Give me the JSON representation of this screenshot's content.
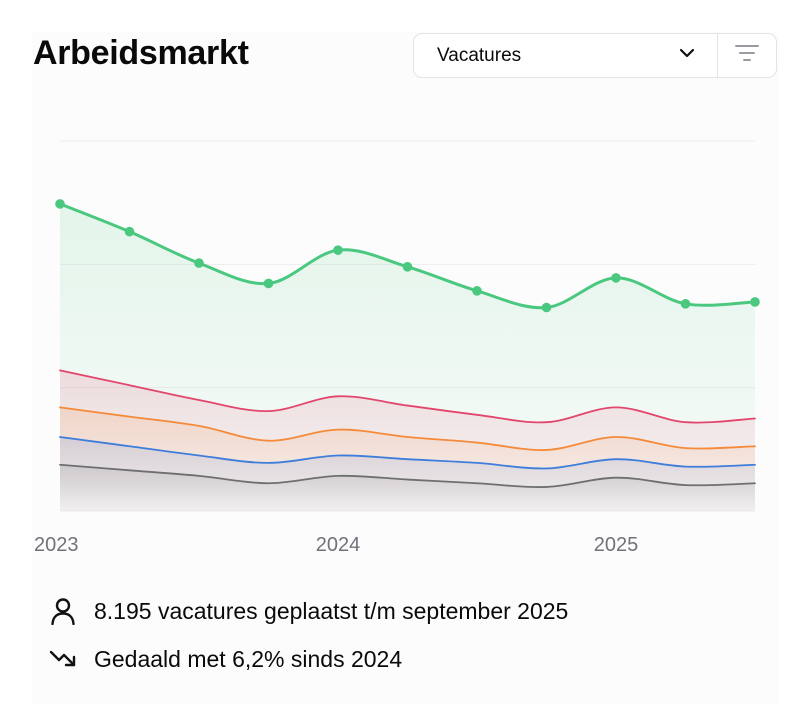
{
  "header": {
    "title": "Arbeidsmarkt",
    "select_value": "Vacatures"
  },
  "icons": {
    "dropdown": "chevron-down-icon",
    "filter": "filter-icon",
    "stat_1": "user-icon",
    "stat_2": "trending-down-icon"
  },
  "chart_data": {
    "type": "area",
    "title": "",
    "xlabel": "",
    "ylabel": "",
    "x_ticks": [
      "2023",
      "2024",
      "2025"
    ],
    "grid": true,
    "legend": "none",
    "stacked": false,
    "x": [
      0,
      0.25,
      0.5,
      0.75,
      1,
      1.25,
      1.5,
      1.75,
      2,
      2.25,
      2.5
    ],
    "ylim": [
      0,
      100
    ],
    "series": [
      {
        "color": "#4ac87f",
        "markers": true,
        "values": [
          83,
          75.5,
          67,
          61.5,
          70.5,
          66,
          59.5,
          55,
          63,
          56,
          56.5
        ]
      },
      {
        "color": "#e2466b",
        "markers": false,
        "values": [
          38,
          34,
          30,
          27,
          31,
          28.5,
          26,
          24,
          28,
          24,
          25
        ]
      },
      {
        "color": "#f58a3a",
        "markers": false,
        "values": [
          28,
          25.5,
          23,
          19,
          22,
          20,
          18.5,
          16.5,
          20,
          17,
          17.5
        ]
      },
      {
        "color": "#3f7ddb",
        "markers": false,
        "values": [
          20,
          17.5,
          15,
          13,
          15,
          14,
          13,
          11.5,
          14,
          12,
          12.5
        ]
      },
      {
        "color": "#6f6f6f",
        "markers": false,
        "values": [
          12.5,
          11,
          9.5,
          7.5,
          9.5,
          8.5,
          7.5,
          6.5,
          9,
          7,
          7.5
        ]
      }
    ]
  },
  "stats": [
    {
      "text": "8.195 vacatures geplaatst t/m september 2025"
    },
    {
      "text": "Gedaald met 6,2% sinds 2024"
    }
  ]
}
